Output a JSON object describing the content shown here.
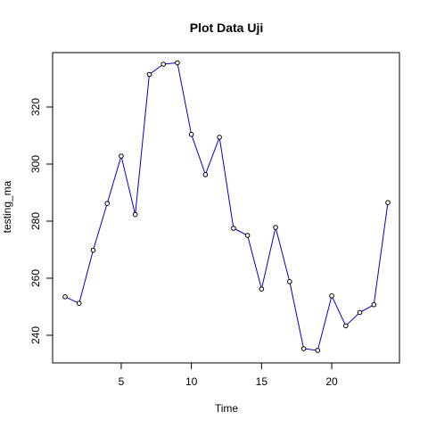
{
  "chart_data": {
    "type": "line",
    "title": "Plot Data Uji",
    "xlabel": "Time",
    "ylabel": "testing_ma",
    "xlim": [
      1,
      24
    ],
    "ylim": [
      235,
      335
    ],
    "xticks": [
      5,
      10,
      15,
      20
    ],
    "yticks": [
      240,
      260,
      280,
      300,
      320
    ],
    "grid": false,
    "line_color": "#0000cc",
    "point_color": "#000000",
    "series": [
      {
        "x": [
          1,
          2,
          3,
          4,
          5,
          6,
          7,
          8,
          9,
          10,
          11,
          12,
          13,
          14,
          15,
          16,
          17,
          18,
          19,
          20,
          21,
          22,
          23,
          24
        ],
        "values": [
          253.5,
          251.2,
          269.8,
          286.2,
          302.8,
          282.3,
          331.4,
          335.0,
          335.5,
          310.4,
          296.3,
          309.4,
          277.5,
          275.0,
          256.2,
          277.8,
          258.8,
          235.3,
          234.7,
          253.8,
          243.3,
          248.0,
          250.7,
          286.5
        ]
      }
    ]
  }
}
